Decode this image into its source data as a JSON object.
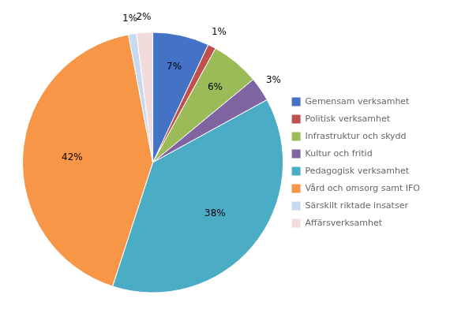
{
  "chart_data": {
    "type": "pie",
    "categories": [
      "Gemensam verksamhet",
      "Politisk verksamhet",
      "Infrastruktur och skydd",
      "Kultur och fritid",
      "Pedagogisk verksamhet",
      "Vård och omsorg samt IFO",
      "Särskilt riktade insatser",
      "Affärsverksamhet"
    ],
    "values": [
      7,
      1,
      6,
      3,
      38,
      42,
      1,
      2
    ],
    "value_labels": [
      "7%",
      "1%",
      "6%",
      "3%",
      "38%",
      "42%",
      "1%",
      "2%"
    ],
    "colors": [
      "#4472C4",
      "#C0504D",
      "#9BBB59",
      "#8064A2",
      "#4BACC6",
      "#F79646",
      "#C6D9F1",
      "#F2DCDB"
    ],
    "data_labels": true,
    "legend": "right"
  }
}
